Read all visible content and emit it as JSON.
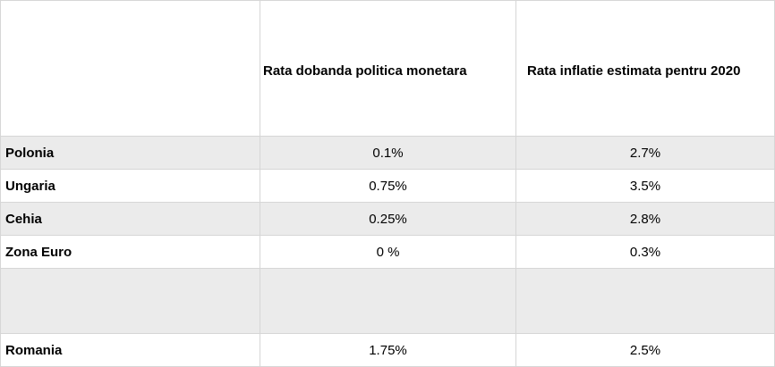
{
  "table": {
    "headers": [
      "",
      "Rata dobanda politica monetara",
      "Rata inflatie estimata pentru 2020"
    ],
    "rows": [
      {
        "country": "Polonia",
        "rate": "0.1%",
        "inflation": "2.7%"
      },
      {
        "country": "Ungaria",
        "rate": "0.75%",
        "inflation": "3.5%"
      },
      {
        "country": "Cehia",
        "rate": "0.25%",
        "inflation": "2.8%"
      },
      {
        "country": "Zona Euro",
        "rate": "0 %",
        "inflation": "0.3%"
      },
      {
        "country": "",
        "rate": "",
        "inflation": ""
      },
      {
        "country": "Romania",
        "rate": "1.75%",
        "inflation": "2.5%"
      }
    ]
  },
  "colors": {
    "shaded_row": "#ebebeb",
    "border": "#d6d6d6"
  }
}
